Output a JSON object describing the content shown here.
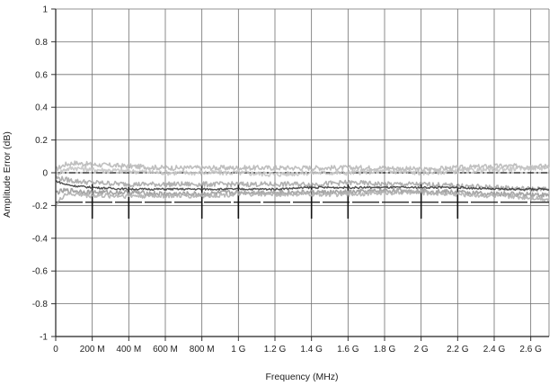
{
  "chart_data": {
    "type": "line",
    "title": "",
    "xlabel": "Frequency (MHz)",
    "ylabel": "Amplitude Error (dB)",
    "xlim": [
      0,
      2700
    ],
    "ylim": [
      -1,
      1
    ],
    "grid": true,
    "x_ticks": [
      {
        "value": 0,
        "label": "0"
      },
      {
        "value": 200,
        "label": "200 M"
      },
      {
        "value": 400,
        "label": "400 M"
      },
      {
        "value": 600,
        "label": "600 M"
      },
      {
        "value": 800,
        "label": "800 M"
      },
      {
        "value": 1000,
        "label": "1 G"
      },
      {
        "value": 1200,
        "label": "1.2 G"
      },
      {
        "value": 1400,
        "label": "1.4 G"
      },
      {
        "value": 1600,
        "label": "1.6 G"
      },
      {
        "value": 1800,
        "label": "1.8 G"
      },
      {
        "value": 2000,
        "label": "2 G"
      },
      {
        "value": 2200,
        "label": "2.2 G"
      },
      {
        "value": 2400,
        "label": "2.4 G"
      },
      {
        "value": 2600,
        "label": "2.6 G"
      }
    ],
    "y_ticks": [
      {
        "value": 1,
        "label": "1"
      },
      {
        "value": 0.8,
        "label": "0.8"
      },
      {
        "value": 0.6,
        "label": "0.6"
      },
      {
        "value": 0.4,
        "label": "0.4"
      },
      {
        "value": 0.2,
        "label": "0.2"
      },
      {
        "value": 0,
        "label": "0"
      },
      {
        "value": -0.2,
        "label": "-0.2"
      },
      {
        "value": -0.4,
        "label": "-0.4"
      },
      {
        "value": -0.6,
        "label": "-0.6"
      },
      {
        "value": -0.8,
        "label": "-0.8"
      },
      {
        "value": -1,
        "label": "-1"
      }
    ],
    "spec_limit_lines": [
      {
        "y": 0,
        "style": "dash-dot"
      },
      {
        "y": -0.18,
        "style": "segmented"
      }
    ],
    "spec_breakpoints": [
      200,
      400,
      800,
      1000,
      1400,
      1600,
      2000,
      2200
    ],
    "series": [
      {
        "color": "#b8b8b8",
        "x": [
          0,
          50,
          100,
          200,
          400,
          600,
          800,
          1000,
          1200,
          1400,
          1600,
          1800,
          2000,
          2200,
          2400,
          2600,
          2700
        ],
        "values": [
          0.02,
          0.05,
          0.06,
          0.05,
          0.04,
          0.03,
          0.03,
          0.03,
          0.03,
          0.03,
          0.03,
          0.03,
          0.02,
          0.03,
          0.04,
          0.04,
          0.04
        ]
      },
      {
        "color": "#c4c4c4",
        "x": [
          0,
          50,
          100,
          200,
          400,
          600,
          800,
          1000,
          1200,
          1400,
          1600,
          1800,
          2000,
          2200,
          2400,
          2600,
          2700
        ],
        "values": [
          -0.01,
          0.02,
          0.03,
          0.02,
          0.01,
          0.0,
          0.0,
          0.0,
          -0.01,
          0.0,
          0.0,
          0.01,
          0.0,
          0.01,
          0.02,
          0.03,
          0.03
        ]
      },
      {
        "color": "#a8a8a8",
        "x": [
          0,
          50,
          100,
          200,
          400,
          600,
          800,
          1000,
          1200,
          1400,
          1600,
          1800,
          2000,
          2200,
          2400,
          2600,
          2700
        ],
        "values": [
          -0.03,
          -0.04,
          -0.05,
          -0.06,
          -0.07,
          -0.07,
          -0.07,
          -0.07,
          -0.07,
          -0.07,
          -0.06,
          -0.07,
          -0.07,
          -0.08,
          -0.09,
          -0.1,
          -0.1
        ]
      },
      {
        "color": "#3a3a3a",
        "x": [
          0,
          50,
          100,
          200,
          400,
          600,
          800,
          1000,
          1200,
          1400,
          1600,
          1800,
          2000,
          2200,
          2400,
          2600,
          2700
        ],
        "values": [
          -0.05,
          -0.07,
          -0.08,
          -0.09,
          -0.1,
          -0.1,
          -0.1,
          -0.1,
          -0.1,
          -0.09,
          -0.09,
          -0.09,
          -0.09,
          -0.09,
          -0.1,
          -0.1,
          -0.1
        ]
      },
      {
        "color": "#9a9a9a",
        "x": [
          0,
          50,
          100,
          200,
          400,
          600,
          800,
          1000,
          1200,
          1400,
          1600,
          1800,
          2000,
          2200,
          2400,
          2600,
          2700
        ],
        "values": [
          -0.12,
          -0.11,
          -0.11,
          -0.12,
          -0.12,
          -0.13,
          -0.13,
          -0.12,
          -0.12,
          -0.12,
          -0.12,
          -0.11,
          -0.11,
          -0.12,
          -0.13,
          -0.13,
          -0.14
        ]
      },
      {
        "color": "#b0b0b0",
        "x": [
          0,
          50,
          100,
          200,
          400,
          600,
          800,
          1000,
          1200,
          1400,
          1600,
          1800,
          2000,
          2200,
          2400,
          2600,
          2700
        ],
        "values": [
          -0.2,
          -0.13,
          -0.13,
          -0.14,
          -0.14,
          -0.14,
          -0.14,
          -0.13,
          -0.13,
          -0.13,
          -0.13,
          -0.12,
          -0.12,
          -0.13,
          -0.14,
          -0.15,
          -0.16
        ]
      }
    ]
  }
}
